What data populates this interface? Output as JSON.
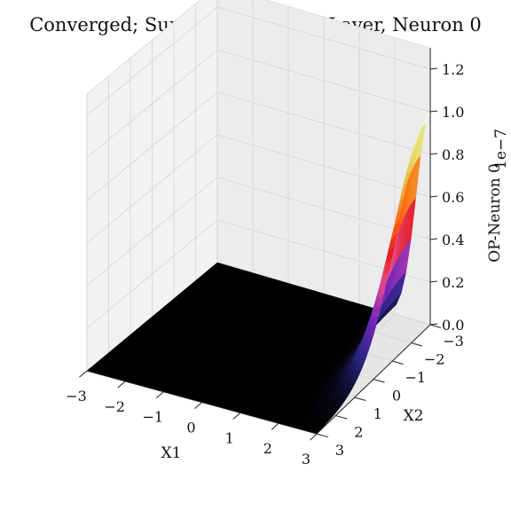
{
  "chart_data": {
    "type": "surface3d",
    "title": "Converged; Surface for Output Layer, Neuron 0",
    "xlabel": "X1",
    "ylabel": "X2",
    "zlabel": "OP-Neuron 0",
    "z_offset_label": "1e−7",
    "x_ticks": [
      "−3",
      "−2",
      "−1",
      "0",
      "1",
      "2",
      "3"
    ],
    "y_ticks": [
      "−3",
      "−2",
      "−1",
      "0",
      "1",
      "2",
      "3"
    ],
    "z_ticks": [
      "0.0",
      "0.2",
      "0.4",
      "0.6",
      "0.8",
      "1.0",
      "1.2"
    ],
    "xlim": [
      -3,
      3
    ],
    "ylim": [
      -3,
      3
    ],
    "zlim": [
      0,
      1.3
    ],
    "colormap": "CMRmap",
    "grid": true,
    "peak": {
      "x1": 3,
      "x2": -3,
      "z": 1.0
    }
  }
}
